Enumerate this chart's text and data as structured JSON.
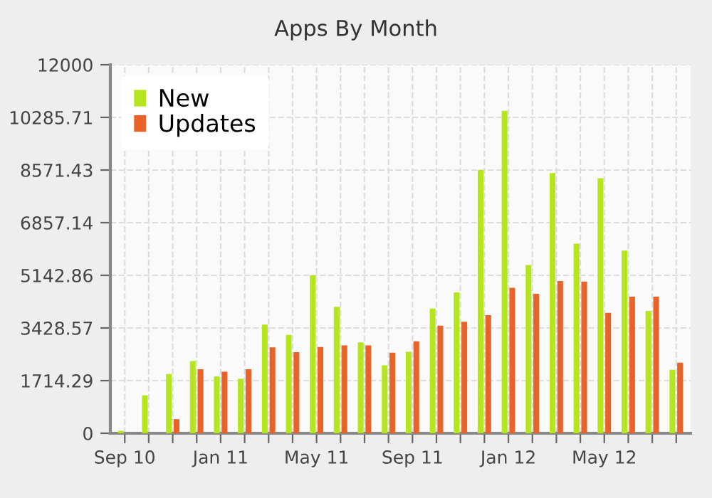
{
  "chart_data": {
    "type": "bar",
    "title": "Apps By Month",
    "categories": [
      "Sep 10",
      null,
      null,
      null,
      "Jan 11",
      null,
      null,
      null,
      "May 11",
      null,
      null,
      null,
      "Sep 11",
      null,
      null,
      null,
      "Jan 12",
      null,
      null,
      null,
      "May 12",
      null,
      null,
      null
    ],
    "series": [
      {
        "name": "New",
        "color": "#b5e61d",
        "values": [
          80,
          1235,
          1930,
          2350,
          1850,
          1775,
          3540,
          3200,
          5140,
          4120,
          2960,
          2210,
          2655,
          4060,
          4585,
          8570,
          10500,
          5480,
          8475,
          6175,
          8305,
          5945,
          3985,
          2070
        ]
      },
      {
        "name": "Updates",
        "color": "#e8622a",
        "values": [
          null,
          null,
          460,
          2085,
          2005,
          2085,
          2795,
          2640,
          2810,
          2860,
          2860,
          2625,
          2995,
          3505,
          3630,
          3845,
          4740,
          4540,
          4955,
          4940,
          3920,
          4445,
          4445,
          2300
        ]
      }
    ],
    "ylim": [
      0,
      12000
    ],
    "yticks": [
      0,
      1714.29,
      3428.57,
      5142.86,
      6857.14,
      8571.43,
      10285.71,
      12000
    ],
    "grid": true,
    "legend": "top left"
  }
}
